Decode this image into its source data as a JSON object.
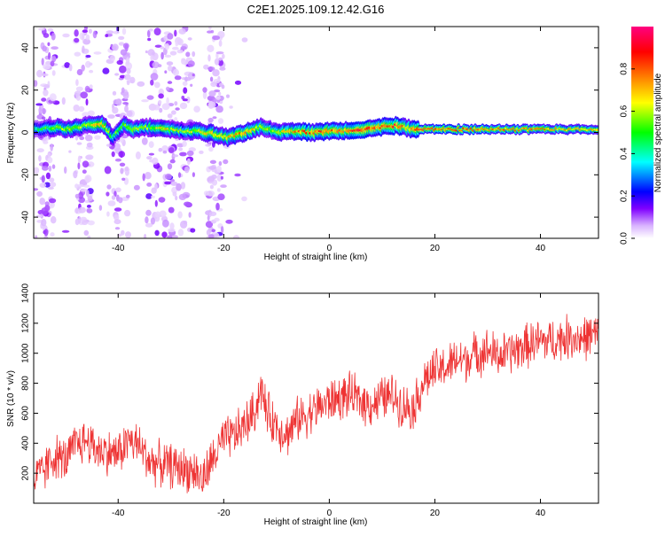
{
  "figure": {
    "title": "C2E1.2025.109.12.42.G16"
  },
  "chart_data": [
    {
      "type": "heatmap",
      "xlabel": "Height of straight line (km)",
      "ylabel": "Frequency (Hz)",
      "xlim": [
        -56,
        51
      ],
      "ylim": [
        -50,
        50
      ],
      "xticks": [
        -40,
        -20,
        0,
        20,
        40
      ],
      "yticks": [
        -40,
        -20,
        0,
        20,
        40
      ],
      "colorbar": {
        "label": "Normalized spectral amplitude",
        "range": [
          0,
          1
        ],
        "ticks": [
          0.0,
          0.2,
          0.4,
          0.6,
          0.8
        ],
        "colormap": [
          "#ffffff",
          "#c080ff",
          "#0000ff",
          "#00ffff",
          "#00ff00",
          "#ffff00",
          "#ff8000",
          "#ff0000",
          "#ff0080"
        ]
      },
      "ridge": {
        "x": [
          -55,
          -52,
          -49,
          -46,
          -43,
          -41,
          -39,
          -37,
          -34,
          -31,
          -28,
          -25,
          -22,
          -19,
          -16,
          -13,
          -11,
          -9,
          -6,
          -3,
          0,
          3,
          6,
          9,
          11,
          13,
          15,
          17,
          20,
          25,
          30,
          35,
          40,
          45,
          51
        ],
        "y": [
          1.5,
          2.5,
          1.5,
          3.5,
          4.5,
          -2.5,
          3.5,
          1.5,
          2.5,
          2.0,
          1.0,
          0.5,
          -0.5,
          -2.5,
          0.0,
          2.5,
          1.0,
          0.0,
          0.5,
          0.0,
          0.5,
          1.0,
          1.5,
          2.0,
          3.5,
          3.0,
          2.0,
          1.5,
          1.5,
          1.5,
          1.5,
          1.5,
          1.5,
          1.5,
          1.5
        ],
        "amplitude": [
          0.45,
          0.55,
          0.6,
          0.55,
          0.75,
          0.5,
          0.55,
          0.6,
          0.55,
          0.65,
          0.55,
          0.6,
          0.7,
          0.65,
          0.75,
          0.6,
          0.55,
          0.65,
          0.75,
          0.8,
          0.8,
          0.75,
          0.85,
          0.8,
          0.75,
          0.85,
          0.7,
          0.85,
          0.8,
          0.8,
          0.8,
          0.75,
          0.75,
          0.7,
          0.7
        ]
      }
    },
    {
      "type": "line",
      "xlabel": "Height of straight line (km)",
      "ylabel": "SNR (10 * v/v)",
      "xlim": [
        -56,
        51
      ],
      "ylim": [
        0,
        1400
      ],
      "xticks": [
        -40,
        -20,
        0,
        20,
        40
      ],
      "yticks": [
        200,
        400,
        600,
        800,
        1000,
        1200,
        1400
      ],
      "series": [
        {
          "color": "#ee3333",
          "x": [
            -56,
            -54,
            -52,
            -50,
            -48,
            -46,
            -44,
            -42,
            -40,
            -38,
            -36,
            -34,
            -32,
            -30,
            -28,
            -26,
            -25,
            -24,
            -22,
            -20,
            -18,
            -16,
            -14,
            -13,
            -12,
            -11,
            -10,
            -8,
            -6,
            -4,
            -2,
            0,
            2,
            4,
            6,
            8,
            10,
            12,
            14,
            16,
            18,
            20,
            22,
            24,
            26,
            28,
            30,
            32,
            34,
            36,
            38,
            40,
            42,
            44,
            46,
            48,
            50
          ],
          "y": [
            150,
            220,
            320,
            280,
            390,
            420,
            360,
            340,
            330,
            420,
            380,
            280,
            260,
            250,
            230,
            220,
            200,
            150,
            300,
            420,
            450,
            520,
            620,
            780,
            620,
            560,
            520,
            460,
            560,
            600,
            640,
            680,
            700,
            720,
            680,
            660,
            700,
            720,
            650,
            640,
            820,
            880,
            900,
            950,
            960,
            1000,
            1020,
            980,
            1000,
            1030,
            1060,
            1080,
            1080,
            1100,
            1110,
            1100,
            1120
          ],
          "noise": 160
        }
      ]
    }
  ]
}
